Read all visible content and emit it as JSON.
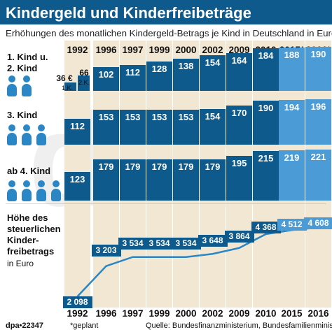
{
  "header": {
    "title": "Kindergeld und Kinderfreibeträge",
    "subtitle": "Erhöhungen des monatlichen Kindergeld-Betrags je Kind in Deutschland in Euro"
  },
  "rows": [
    {
      "label_line1": "1. Kind u.",
      "label_line2": "2. Kind",
      "persons": 2
    },
    {
      "label_line1": "3. Kind",
      "label_line2": "",
      "persons": 3
    },
    {
      "label_line1": "ab 4. Kind",
      "label_line2": "",
      "persons": 4
    }
  ],
  "special_1992": {
    "value_a": "36 €",
    "sub_a": "1.K.",
    "value_b": "66",
    "sub_b": "2.K."
  },
  "freibetrag": {
    "line1": "Höhe des",
    "line2": "steuerlichen",
    "line3": "Kinder-",
    "line4": "freibetrags",
    "unit": "in Euro"
  },
  "footer": {
    "agency": "dpa•22347",
    "note": "*geplant",
    "source": "Quelle: Bundesfinanzministerium, Bundesfamilienministerium"
  },
  "watermark": "dpa",
  "colors": {
    "bar": "#0e5a8c",
    "projected": "#4a9bd6",
    "column_bg": "#f2e7d3",
    "person": "#2a86c4",
    "line": "#2a86c4"
  },
  "chart_data": {
    "type": "bar",
    "title": "Kindergeld und Kinderfreibeträge",
    "subtitle": "Erhöhungen des monatlichen Kindergeld-Betrags je Kind in Deutschland in Euro",
    "categories": [
      "1992",
      "1996",
      "1997",
      "1999",
      "2000",
      "2002",
      "2009",
      "2010",
      "2015*",
      "2016*"
    ],
    "projected": [
      false,
      false,
      false,
      false,
      false,
      false,
      false,
      false,
      true,
      true
    ],
    "series": [
      {
        "name": "1. Kind u. 2. Kind",
        "values": [
          null,
          102,
          112,
          128,
          138,
          154,
          164,
          184,
          188,
          190
        ],
        "value_labels": [
          "",
          "102",
          "112",
          "128",
          "138",
          "154",
          "164",
          "184",
          "188",
          "190"
        ]
      },
      {
        "name": "3. Kind",
        "values": [
          112,
          153,
          153,
          153,
          153,
          154,
          170,
          190,
          194,
          196
        ],
        "value_labels": [
          "112",
          "153",
          "153",
          "153",
          "153",
          "154",
          "170",
          "190",
          "194",
          "196"
        ]
      },
      {
        "name": "ab 4. Kind",
        "values": [
          123,
          179,
          179,
          179,
          179,
          179,
          195,
          215,
          219,
          221
        ],
        "value_labels": [
          "123",
          "179",
          "179",
          "179",
          "179",
          "179",
          "195",
          "215",
          "219",
          "221"
        ]
      }
    ],
    "first_row_1992": [
      36,
      66
    ],
    "line": {
      "name": "Höhe des steuerlichen Kinderfreibetrags in Euro",
      "x": [
        "1992",
        "1996",
        "1997",
        "1999",
        "2000",
        "2002",
        "2009",
        "2010",
        "2015",
        "2016"
      ],
      "values": [
        2098,
        3203,
        3534,
        3534,
        3534,
        3648,
        3864,
        4368,
        4512,
        4608
      ],
      "value_labels": [
        "2 098",
        "3 203",
        "3 534",
        "3 534",
        "3 534",
        "3 648",
        "3 864",
        "4 368",
        "4 512",
        "4 608"
      ],
      "ylim": [
        2000,
        4800
      ]
    },
    "xlabels_bottom": [
      "1992",
      "1996",
      "1997",
      "1999",
      "2000",
      "2002",
      "2009",
      "2010",
      "2015",
      "2016"
    ]
  }
}
